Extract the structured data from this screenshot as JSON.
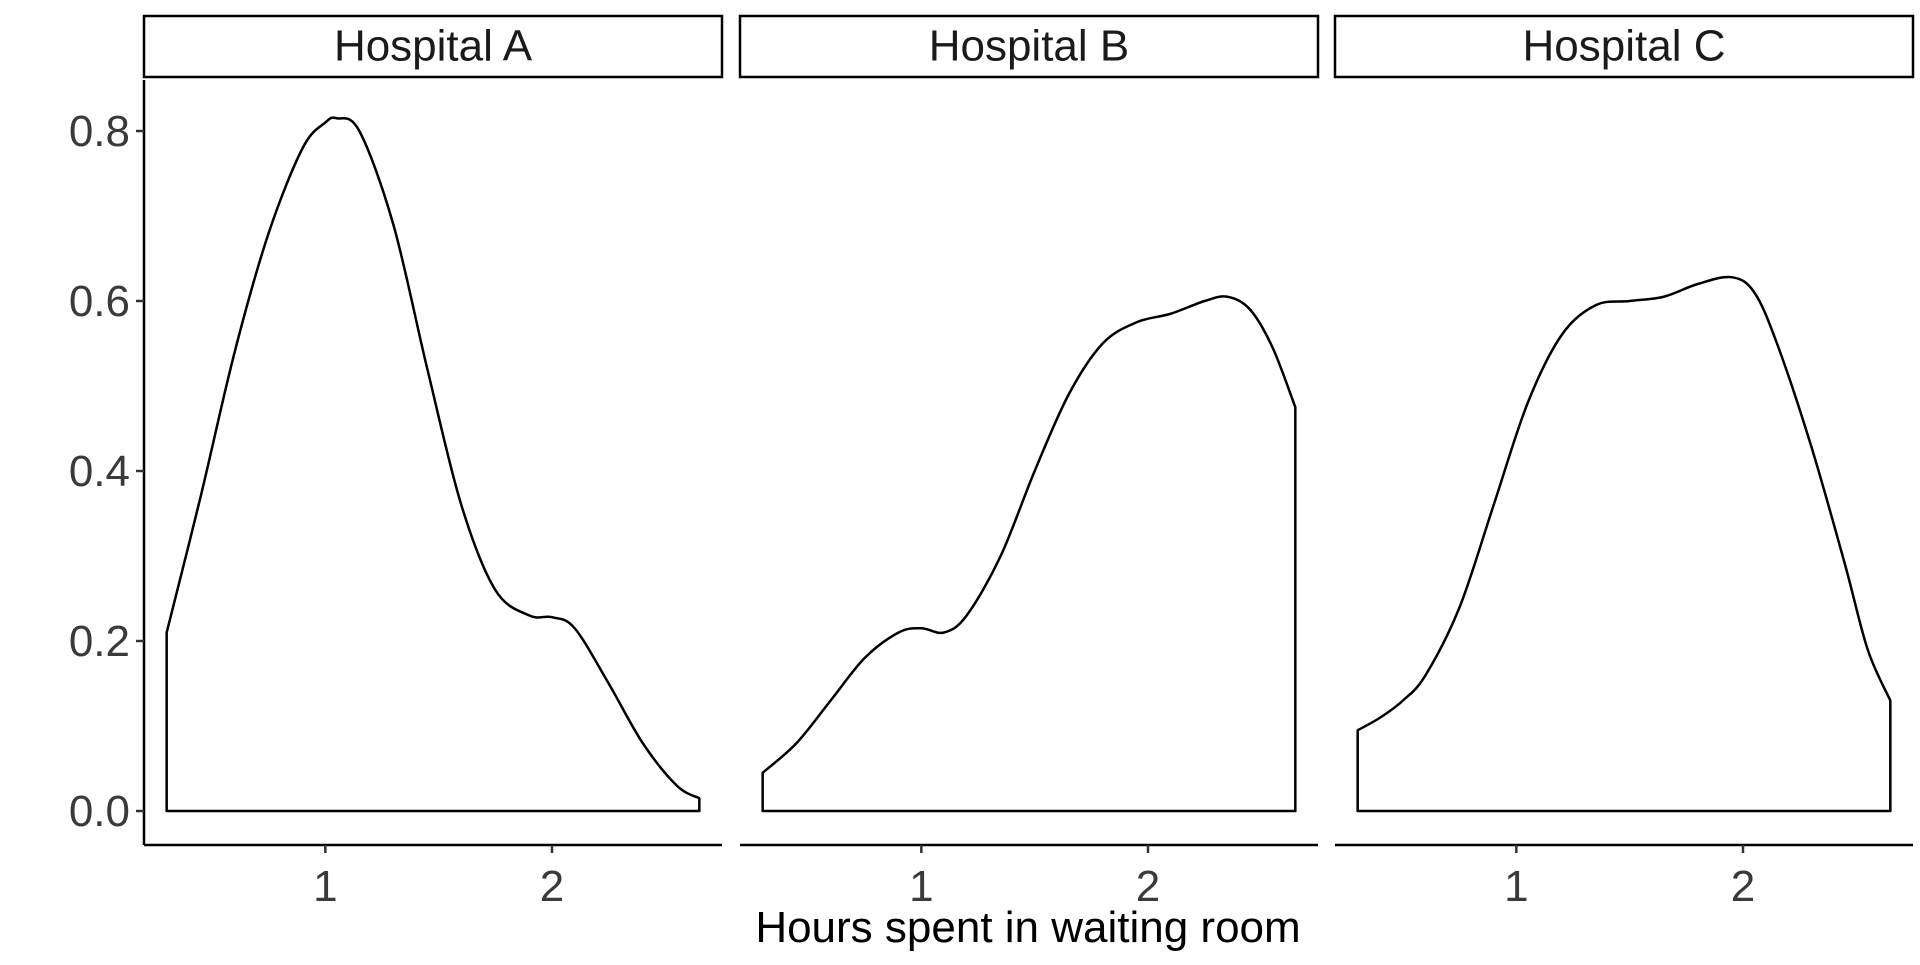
{
  "chart_data": {
    "type": "area",
    "xlabel": "Hours spent in waiting room",
    "ylabel": "",
    "xlim": [
      0.2,
      2.75
    ],
    "ylim": [
      -0.04,
      0.86
    ],
    "x_ticks": [
      1,
      2
    ],
    "x_tick_labels": [
      "1",
      "2"
    ],
    "y_ticks": [
      0.0,
      0.2,
      0.4,
      0.6,
      0.8
    ],
    "y_tick_labels": [
      "0.0",
      "0.2",
      "0.4",
      "0.6",
      "0.8"
    ],
    "grid": false,
    "legend": "none",
    "colors": {
      "line": "#000000",
      "fill": "#ffffff",
      "strip_border": "#000000",
      "tick_text": "#3a3a3a",
      "label_text": "#000000"
    },
    "panels": [
      {
        "name": "Hospital A",
        "x": [
          0.3,
          0.45,
          0.6,
          0.75,
          0.9,
          1.0,
          1.05,
          1.15,
          1.3,
          1.45,
          1.6,
          1.75,
          1.9,
          2.0,
          2.1,
          2.25,
          2.4,
          2.55,
          2.65
        ],
        "y": [
          0.21,
          0.37,
          0.54,
          0.68,
          0.78,
          0.81,
          0.815,
          0.8,
          0.69,
          0.52,
          0.36,
          0.26,
          0.23,
          0.228,
          0.215,
          0.15,
          0.08,
          0.03,
          0.015
        ]
      },
      {
        "name": "Hospital B",
        "x": [
          0.3,
          0.45,
          0.6,
          0.75,
          0.9,
          1.0,
          1.1,
          1.2,
          1.35,
          1.5,
          1.65,
          1.8,
          1.95,
          2.1,
          2.25,
          2.35,
          2.45,
          2.55,
          2.65
        ],
        "y": [
          0.045,
          0.08,
          0.13,
          0.18,
          0.21,
          0.215,
          0.21,
          0.23,
          0.3,
          0.4,
          0.49,
          0.55,
          0.575,
          0.585,
          0.6,
          0.605,
          0.59,
          0.545,
          0.475
        ]
      },
      {
        "name": "Hospital C",
        "x": [
          0.3,
          0.4,
          0.5,
          0.6,
          0.75,
          0.9,
          1.05,
          1.2,
          1.35,
          1.5,
          1.65,
          1.8,
          1.95,
          2.05,
          2.15,
          2.3,
          2.45,
          2.55,
          2.65
        ],
        "y": [
          0.095,
          0.11,
          0.13,
          0.16,
          0.24,
          0.36,
          0.48,
          0.56,
          0.595,
          0.6,
          0.605,
          0.62,
          0.628,
          0.61,
          0.55,
          0.43,
          0.29,
          0.19,
          0.13
        ]
      }
    ]
  }
}
